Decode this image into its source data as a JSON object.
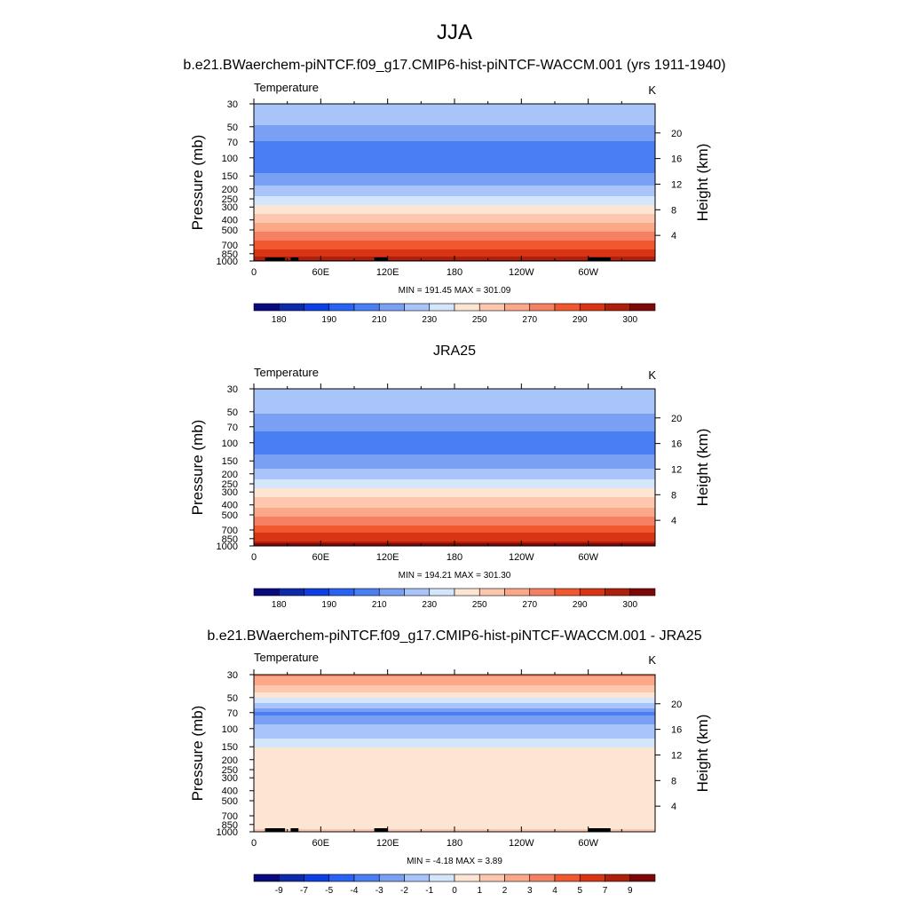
{
  "figure": {
    "title": "JJA",
    "panel_titles": [
      "b.e21.BWaerchem-piNTCF.f09_g17.CMIP6-hist-piNTCF-WACCM.001 (yrs 1911-1940)",
      "JRA25",
      "b.e21.BWaerchem-piNTCF.f09_g17.CMIP6-hist-piNTCF-WACCM.001 - JRA25"
    ]
  },
  "chart_data": [
    {
      "type": "heatmap",
      "title": "b.e21.BWaerchem-piNTCF.f09_g17.CMIP6-hist-piNTCF-WACCM.001 (yrs 1911-1940)",
      "variable": "Temperature",
      "units": "K",
      "ylabel": "Pressure (mb)",
      "y2label": "Height (km)",
      "xticks": [
        "0",
        "60E",
        "120E",
        "180",
        "120W",
        "60W"
      ],
      "yticks": [
        "30",
        "50",
        "70",
        "100",
        "150",
        "200",
        "250",
        "300",
        "400",
        "500",
        "700",
        "850",
        "1000"
      ],
      "y2ticks": [
        "20",
        "16",
        "12",
        "8",
        "4"
      ],
      "y_scale": "log",
      "stats": "MIN = 191.45  MAX = 301.09",
      "colorbar_labels": [
        "180",
        "190",
        "210",
        "230",
        "250",
        "270",
        "290",
        "300"
      ],
      "colors": [
        "#0a0a80",
        "#0c2aaa",
        "#0d3fe2",
        "#2a62f4",
        "#4a7ff4",
        "#7aa0f4",
        "#a9c4f8",
        "#d4e6fc",
        "#fde5d4",
        "#fcc7ae",
        "#fba888",
        "#f68162",
        "#f2582f",
        "#d93515",
        "#ac200c",
        "#7e0808"
      ],
      "profile": [
        {
          "p": 30,
          "v": 218
        },
        {
          "p": 40,
          "v": 214
        },
        {
          "p": 55,
          "v": 207
        },
        {
          "p": 70,
          "v": 200
        },
        {
          "p": 100,
          "v": 194
        },
        {
          "p": 140,
          "v": 200
        },
        {
          "p": 170,
          "v": 207
        },
        {
          "p": 200,
          "v": 214
        },
        {
          "p": 240,
          "v": 220
        },
        {
          "p": 280,
          "v": 228
        },
        {
          "p": 330,
          "v": 238
        },
        {
          "p": 400,
          "v": 247
        },
        {
          "p": 480,
          "v": 255
        },
        {
          "p": 560,
          "v": 263
        },
        {
          "p": 650,
          "v": 271
        },
        {
          "p": 760,
          "v": 280
        },
        {
          "p": 880,
          "v": 288
        },
        {
          "p": 960,
          "v": 294
        },
        {
          "p": 1000,
          "v": 298
        }
      ],
      "topography_lon": [
        10,
        28,
        33,
        40,
        108,
        120,
        300,
        320
      ]
    },
    {
      "type": "heatmap",
      "title": "JRA25",
      "variable": "Temperature",
      "units": "K",
      "ylabel": "Pressure (mb)",
      "y2label": "Height (km)",
      "xticks": [
        "0",
        "60E",
        "120E",
        "180",
        "120W",
        "60W"
      ],
      "yticks": [
        "30",
        "50",
        "70",
        "100",
        "150",
        "200",
        "250",
        "300",
        "400",
        "500",
        "700",
        "850",
        "1000"
      ],
      "y2ticks": [
        "20",
        "16",
        "12",
        "8",
        "4"
      ],
      "y_scale": "log",
      "stats": "MIN = 194.21  MAX = 301.30",
      "colorbar_labels": [
        "180",
        "190",
        "210",
        "230",
        "250",
        "270",
        "290",
        "300"
      ],
      "colors": [
        "#0a0a80",
        "#0c2aaa",
        "#0d3fe2",
        "#2a62f4",
        "#4a7ff4",
        "#7aa0f4",
        "#a9c4f8",
        "#d4e6fc",
        "#fde5d4",
        "#fcc7ae",
        "#fba888",
        "#f68162",
        "#f2582f",
        "#d93515",
        "#ac200c",
        "#7e0808"
      ],
      "profile": [
        {
          "p": 30,
          "v": 220
        },
        {
          "p": 40,
          "v": 216
        },
        {
          "p": 55,
          "v": 209
        },
        {
          "p": 70,
          "v": 202
        },
        {
          "p": 100,
          "v": 196
        },
        {
          "p": 140,
          "v": 201
        },
        {
          "p": 170,
          "v": 208
        },
        {
          "p": 200,
          "v": 215
        },
        {
          "p": 240,
          "v": 222
        },
        {
          "p": 280,
          "v": 230
        },
        {
          "p": 330,
          "v": 240
        },
        {
          "p": 400,
          "v": 248
        },
        {
          "p": 480,
          "v": 256
        },
        {
          "p": 560,
          "v": 264
        },
        {
          "p": 650,
          "v": 272
        },
        {
          "p": 760,
          "v": 281
        },
        {
          "p": 880,
          "v": 289
        },
        {
          "p": 960,
          "v": 295
        },
        {
          "p": 1000,
          "v": 299
        }
      ],
      "topography_lon": []
    },
    {
      "type": "heatmap",
      "title": "b.e21.BWaerchem-piNTCF.f09_g17.CMIP6-hist-piNTCF-WACCM.001 - JRA25",
      "variable": "Temperature",
      "units": "K",
      "ylabel": "Pressure (mb)",
      "y2label": "Height (km)",
      "xticks": [
        "0",
        "60E",
        "120E",
        "180",
        "120W",
        "60W"
      ],
      "yticks": [
        "30",
        "50",
        "70",
        "100",
        "150",
        "200",
        "250",
        "300",
        "400",
        "500",
        "700",
        "850",
        "1000"
      ],
      "y2ticks": [
        "20",
        "16",
        "12",
        "8",
        "4"
      ],
      "y_scale": "log",
      "stats": "MIN =  -4.18  MAX =   3.89",
      "colorbar_labels": [
        "-9",
        "-7",
        "-5",
        "-4",
        "-3",
        "-2",
        "-1",
        "0",
        "1",
        "2",
        "3",
        "4",
        "5",
        "7",
        "9"
      ],
      "colors": [
        "#0a0a80",
        "#0c2aaa",
        "#0d3fe2",
        "#2a62f4",
        "#4a7ff4",
        "#7aa0f4",
        "#a9c4f8",
        "#d4e6fc",
        "#fde5d4",
        "#fcc7ae",
        "#fba888",
        "#f68162",
        "#f2582f",
        "#d93515",
        "#ac200c",
        "#7e0808"
      ],
      "profile": [
        {
          "p": 30,
          "v": 3.2
        },
        {
          "p": 36,
          "v": 2.2
        },
        {
          "p": 42,
          "v": 1.4
        },
        {
          "p": 48,
          "v": 0.4
        },
        {
          "p": 54,
          "v": -0.6
        },
        {
          "p": 62,
          "v": -1.6
        },
        {
          "p": 70,
          "v": -3.3
        },
        {
          "p": 82,
          "v": -2.4
        },
        {
          "p": 95,
          "v": -1.8
        },
        {
          "p": 115,
          "v": -1.3
        },
        {
          "p": 140,
          "v": -0.6
        },
        {
          "p": 160,
          "v": 0.3
        },
        {
          "p": 900,
          "v": 0.4
        },
        {
          "p": 940,
          "v": 1.3
        },
        {
          "p": 1000,
          "v": 1.6
        }
      ],
      "topography_lon": [
        10,
        28,
        33,
        40,
        108,
        120,
        300,
        320
      ]
    }
  ]
}
